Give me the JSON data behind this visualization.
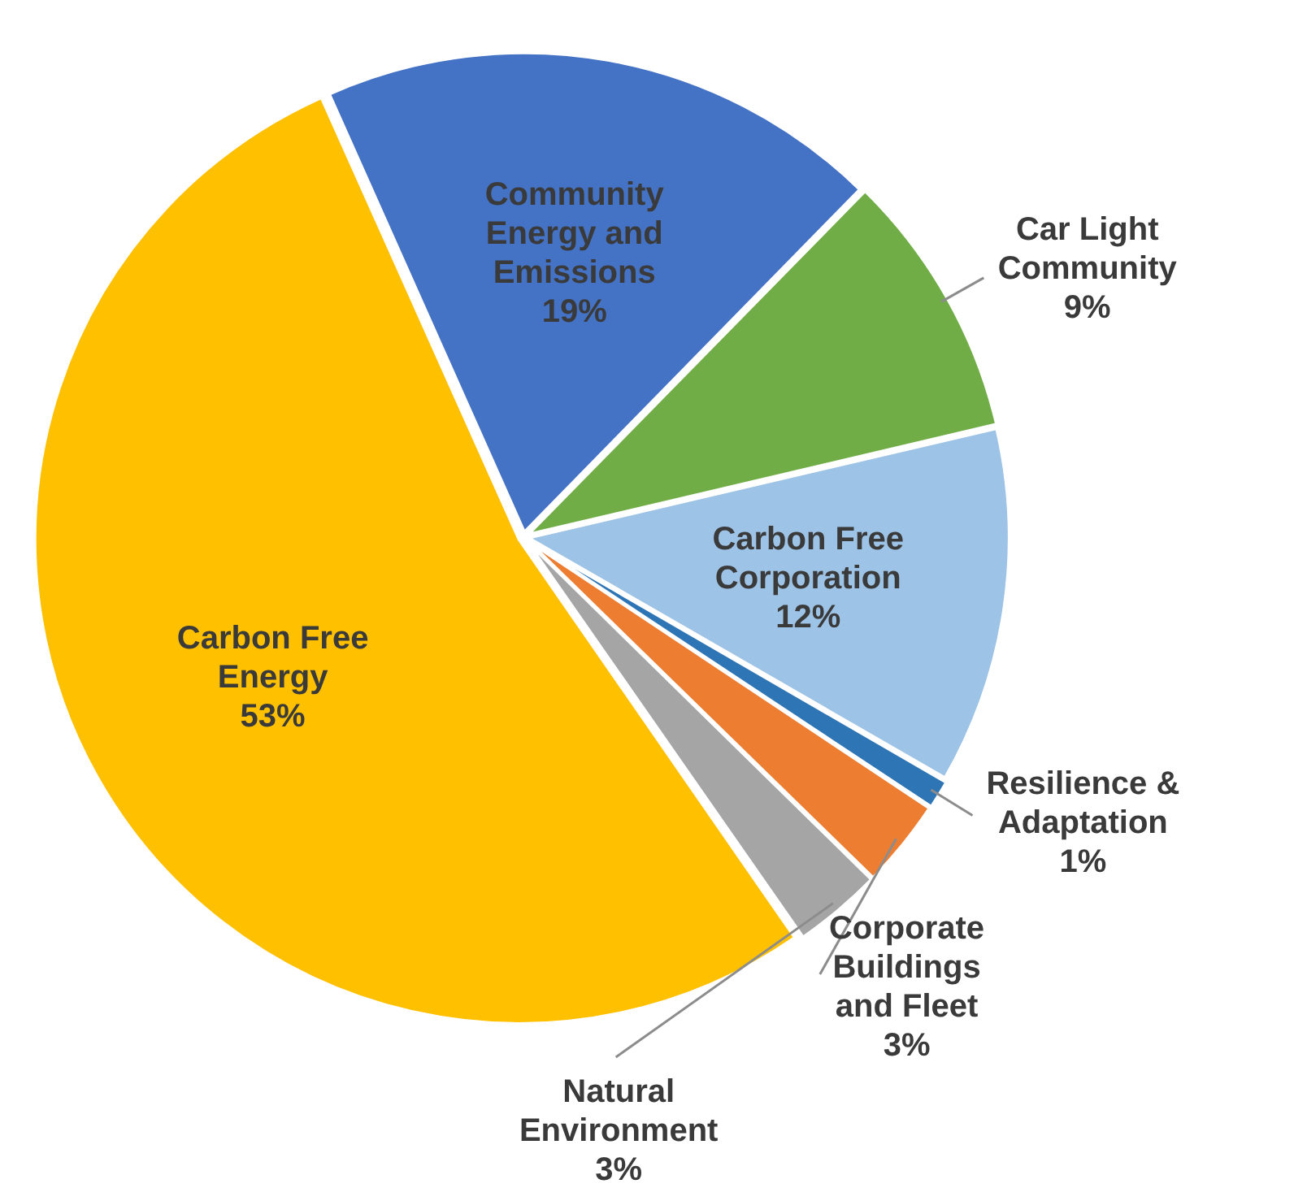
{
  "chart_data": {
    "type": "pie",
    "categories": [
      "Community Energy and Emissions",
      "Car Light Community",
      "Carbon Free Corporation",
      "Resilience & Adaptation",
      "Corporate Buildings and Fleet",
      "Natural Environment",
      "Carbon Free Energy"
    ],
    "values": [
      19,
      9,
      12,
      1,
      3,
      3,
      53
    ],
    "value_labels": [
      "19%",
      "9%",
      "12%",
      "1%",
      "3%",
      "3%",
      "53%"
    ],
    "colors": [
      "#4472c4",
      "#70ad47",
      "#9dc3e6",
      "#2e75b6",
      "#ed7d31",
      "#a5a5a5",
      "#ffc000"
    ],
    "legend": false
  }
}
